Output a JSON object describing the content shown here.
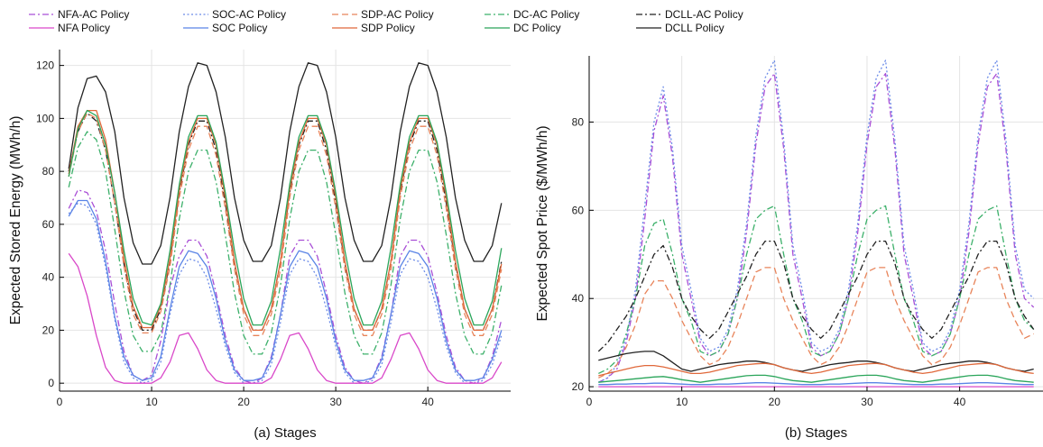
{
  "legend": {
    "columns": [
      [
        {
          "series": "NFA-AC Policy"
        },
        {
          "series": "NFA Policy"
        }
      ],
      [
        {
          "series": "SOC-AC Policy"
        },
        {
          "series": "SOC Policy"
        }
      ],
      [
        {
          "series": "SDP-AC Policy"
        },
        {
          "series": "SDP Policy"
        }
      ],
      [
        {
          "series": "DC-AC Policy"
        },
        {
          "series": "DC Policy"
        }
      ],
      [
        {
          "series": "DCLL-AC Policy"
        },
        {
          "series": "DCLL Policy"
        }
      ]
    ]
  },
  "styles": {
    "NFA-AC Policy": {
      "color": "#a94fd6",
      "dash": "dashdot"
    },
    "NFA Policy": {
      "color": "#d948c9",
      "dash": "solid"
    },
    "SOC-AC Policy": {
      "color": "#6b8be8",
      "dash": "dot"
    },
    "SOC Policy": {
      "color": "#5a84e6",
      "dash": "solid"
    },
    "SDP-AC Policy": {
      "color": "#e8845a",
      "dash": "dash"
    },
    "SDP Policy": {
      "color": "#e0683a",
      "dash": "solid"
    },
    "DC-AC Policy": {
      "color": "#3cb06a",
      "dash": "dashdot"
    },
    "DC Policy": {
      "color": "#2aa55a",
      "dash": "solid"
    },
    "DCLL-AC Policy": {
      "color": "#222222",
      "dash": "dashdot"
    },
    "DCLL Policy": {
      "color": "#222222",
      "dash": "solid"
    }
  },
  "chart_data": [
    {
      "type": "line",
      "caption": "(a) Stages",
      "ylabel": "Expected Stored Energy (MWh/h)",
      "xlim": [
        0,
        49
      ],
      "ylim": [
        -3,
        126
      ],
      "xticks": [
        0,
        10,
        20,
        30,
        40
      ],
      "yticks": [
        0,
        20,
        40,
        60,
        80,
        100,
        120
      ],
      "grid": true,
      "period": 12,
      "x": [
        1,
        2,
        3,
        4,
        5,
        6,
        7,
        8,
        9,
        10,
        11,
        12,
        13,
        14,
        15,
        16,
        17,
        18,
        19,
        20,
        21,
        22,
        23,
        24,
        25,
        26,
        27,
        28,
        29,
        30,
        31,
        32,
        33,
        34,
        35,
        36,
        37,
        38,
        39,
        40,
        41,
        42,
        43,
        44,
        45,
        46,
        47,
        48
      ],
      "series": [
        {
          "name": "DCLL Policy",
          "first_cycle": [
            81,
            104,
            115,
            116,
            110,
            95,
            70,
            53,
            45,
            45,
            52,
            70
          ],
          "rest_cycle": [
            95,
            112,
            121,
            120,
            110,
            93,
            70,
            54,
            46,
            46,
            52,
            70
          ],
          "last": 68
        },
        {
          "name": "DCLL-AC Policy",
          "first_cycle": [
            80,
            95,
            102,
            99,
            88,
            68,
            45,
            28,
            20,
            20,
            28,
            46
          ],
          "rest_cycle": [
            72,
            90,
            99,
            99,
            88,
            68,
            45,
            28,
            20,
            20,
            28,
            46
          ],
          "last": 46
        },
        {
          "name": "SDP Policy",
          "first_cycle": [
            79,
            97,
            103,
            103,
            92,
            72,
            47,
            29,
            21,
            21,
            29,
            47
          ],
          "rest_cycle": [
            73,
            91,
            100,
            100,
            90,
            70,
            46,
            28,
            20,
            20,
            28,
            46
          ],
          "last": 45
        },
        {
          "name": "SDP-AC Policy",
          "first_cycle": [
            78,
            95,
            102,
            100,
            88,
            68,
            44,
            26,
            19,
            19,
            27,
            44
          ],
          "rest_cycle": [
            70,
            88,
            97,
            97,
            86,
            66,
            43,
            26,
            18,
            18,
            26,
            43
          ],
          "last": 43
        },
        {
          "name": "DC Policy",
          "first_cycle": [
            78,
            96,
            103,
            101,
            90,
            72,
            50,
            32,
            23,
            22,
            30,
            50
          ],
          "rest_cycle": [
            75,
            93,
            101,
            101,
            91,
            72,
            50,
            32,
            22,
            22,
            31,
            51
          ],
          "last": 51
        },
        {
          "name": "DC-AC Policy",
          "first_cycle": [
            74,
            89,
            95,
            92,
            80,
            58,
            35,
            18,
            12,
            12,
            19,
            37
          ],
          "rest_cycle": [
            62,
            80,
            88,
            88,
            76,
            56,
            34,
            18,
            11,
            11,
            19,
            37
          ],
          "last": 37
        },
        {
          "name": "NFA-AC Policy",
          "first_cycle": [
            66,
            73,
            72,
            65,
            50,
            30,
            12,
            3,
            1,
            3,
            16,
            36
          ],
          "rest_cycle": [
            48,
            54,
            54,
            48,
            34,
            18,
            6,
            1,
            0,
            2,
            10,
            26
          ],
          "last": 24
        },
        {
          "name": "SOC Policy",
          "first_cycle": [
            63,
            69,
            69,
            62,
            46,
            25,
            10,
            3,
            1,
            2,
            10,
            28
          ],
          "rest_cycle": [
            44,
            50,
            49,
            44,
            32,
            16,
            5,
            1,
            1,
            2,
            9,
            26
          ],
          "last": 20
        },
        {
          "name": "SOC-AC Policy",
          "first_cycle": [
            64,
            68,
            67,
            60,
            44,
            24,
            8,
            2,
            0,
            1,
            8,
            26
          ],
          "rest_cycle": [
            41,
            47,
            46,
            40,
            28,
            14,
            4,
            0,
            0,
            1,
            7,
            23
          ],
          "last": 18
        },
        {
          "name": "NFA Policy",
          "first_cycle": [
            49,
            44,
            33,
            18,
            6,
            1,
            0,
            0,
            0,
            0,
            2,
            8
          ],
          "rest_cycle": [
            18,
            19,
            13,
            5,
            1,
            0,
            0,
            0,
            0,
            0,
            2,
            9
          ],
          "last": 8
        }
      ]
    },
    {
      "type": "line",
      "caption": "(b) Stages",
      "ylabel": "Expected Spot Price ($/MWh/h)",
      "xlim": [
        0,
        49
      ],
      "ylim": [
        19,
        95
      ],
      "xticks": [
        0,
        10,
        20,
        30,
        40
      ],
      "yticks": [
        20,
        40,
        60,
        80
      ],
      "grid": true,
      "period": 12,
      "x": [
        1,
        2,
        3,
        4,
        5,
        6,
        7,
        8,
        9,
        10,
        11,
        12,
        13,
        14,
        15,
        16,
        17,
        18,
        19,
        20,
        21,
        22,
        23,
        24,
        25,
        26,
        27,
        28,
        29,
        30,
        31,
        32,
        33,
        34,
        35,
        36,
        37,
        38,
        39,
        40,
        41,
        42,
        43,
        44,
        45,
        46,
        47,
        48
      ],
      "series": [
        {
          "name": "NFA-AC Policy",
          "first_cycle": [
            21,
            22,
            24,
            30,
            40,
            58,
            78,
            86,
            72,
            50,
            40,
            30
          ],
          "rest_cycle": [
            27,
            28,
            32,
            40,
            55,
            75,
            88,
            91,
            74,
            50,
            40,
            29
          ],
          "last": 38
        },
        {
          "name": "SOC-AC Policy",
          "first_cycle": [
            21,
            22,
            25,
            31,
            42,
            61,
            80,
            88,
            74,
            52,
            42,
            31
          ],
          "rest_cycle": [
            28,
            29,
            33,
            42,
            57,
            77,
            90,
            94,
            76,
            52,
            42,
            30
          ],
          "last": 40
        },
        {
          "name": "DC-AC Policy",
          "first_cycle": [
            23,
            24,
            26,
            32,
            40,
            52,
            57,
            58,
            50,
            40,
            35,
            28
          ],
          "rest_cycle": [
            27,
            28,
            32,
            40,
            50,
            58,
            60,
            61,
            50,
            40,
            35,
            28
          ],
          "last": 33
        },
        {
          "name": "SDP-AC Policy",
          "first_cycle": [
            22,
            23,
            25,
            29,
            34,
            41,
            44,
            44,
            40,
            35,
            31,
            27
          ],
          "rest_cycle": [
            25,
            26,
            29,
            34,
            40,
            46,
            47,
            47,
            40,
            35,
            31,
            27
          ],
          "last": 32
        },
        {
          "name": "DCLL-AC Policy",
          "first_cycle": [
            28,
            30,
            33,
            36,
            40,
            45,
            50,
            52,
            47,
            40,
            36,
            33
          ],
          "rest_cycle": [
            31,
            33,
            37,
            41,
            45,
            50,
            53,
            53,
            48,
            40,
            36,
            33
          ],
          "last": 33
        },
        {
          "name": "DCLL Policy",
          "first_cycle": [
            26,
            26.5,
            27,
            27.5,
            27.8,
            28,
            28,
            27,
            25.5,
            24,
            23.5,
            24
          ],
          "rest_cycle": [
            24.5,
            25,
            25.3,
            25.5,
            25.8,
            25.8,
            25.5,
            25,
            24.3,
            23.8,
            23.5,
            24
          ],
          "last": 24
        },
        {
          "name": "SDP Policy",
          "first_cycle": [
            22.5,
            23,
            23.5,
            24,
            24.5,
            24.8,
            24.8,
            24.5,
            24,
            23.5,
            23,
            23
          ],
          "rest_cycle": [
            23.3,
            23.8,
            24.3,
            24.8,
            25,
            25.2,
            25.3,
            25,
            24.3,
            23.8,
            23.3,
            23
          ],
          "last": 23
        },
        {
          "name": "DC Policy",
          "first_cycle": [
            21,
            21.2,
            21.4,
            21.6,
            21.8,
            22,
            22.2,
            22.3,
            22,
            21.6,
            21.3,
            21
          ],
          "rest_cycle": [
            21.3,
            21.6,
            21.9,
            22.2,
            22.5,
            22.6,
            22.6,
            22.3,
            21.8,
            21.4,
            21.2,
            21
          ],
          "last": 21
        },
        {
          "name": "SOC Policy",
          "first_cycle": [
            20.5,
            20.5,
            20.6,
            20.6,
            20.7,
            20.7,
            20.8,
            20.8,
            20.7,
            20.6,
            20.5,
            20.5
          ],
          "rest_cycle": [
            20.5,
            20.6,
            20.6,
            20.7,
            20.8,
            20.9,
            20.9,
            20.8,
            20.7,
            20.6,
            20.5,
            20.5
          ],
          "last": 20.5
        },
        {
          "name": "NFA Policy",
          "first_cycle": [
            20,
            20,
            20,
            20,
            20,
            20,
            20,
            20,
            20,
            20,
            20,
            20
          ],
          "rest_cycle": [
            20,
            20,
            20,
            20,
            20,
            20,
            20,
            20,
            20,
            20,
            20,
            20
          ],
          "last": 20
        }
      ]
    }
  ]
}
